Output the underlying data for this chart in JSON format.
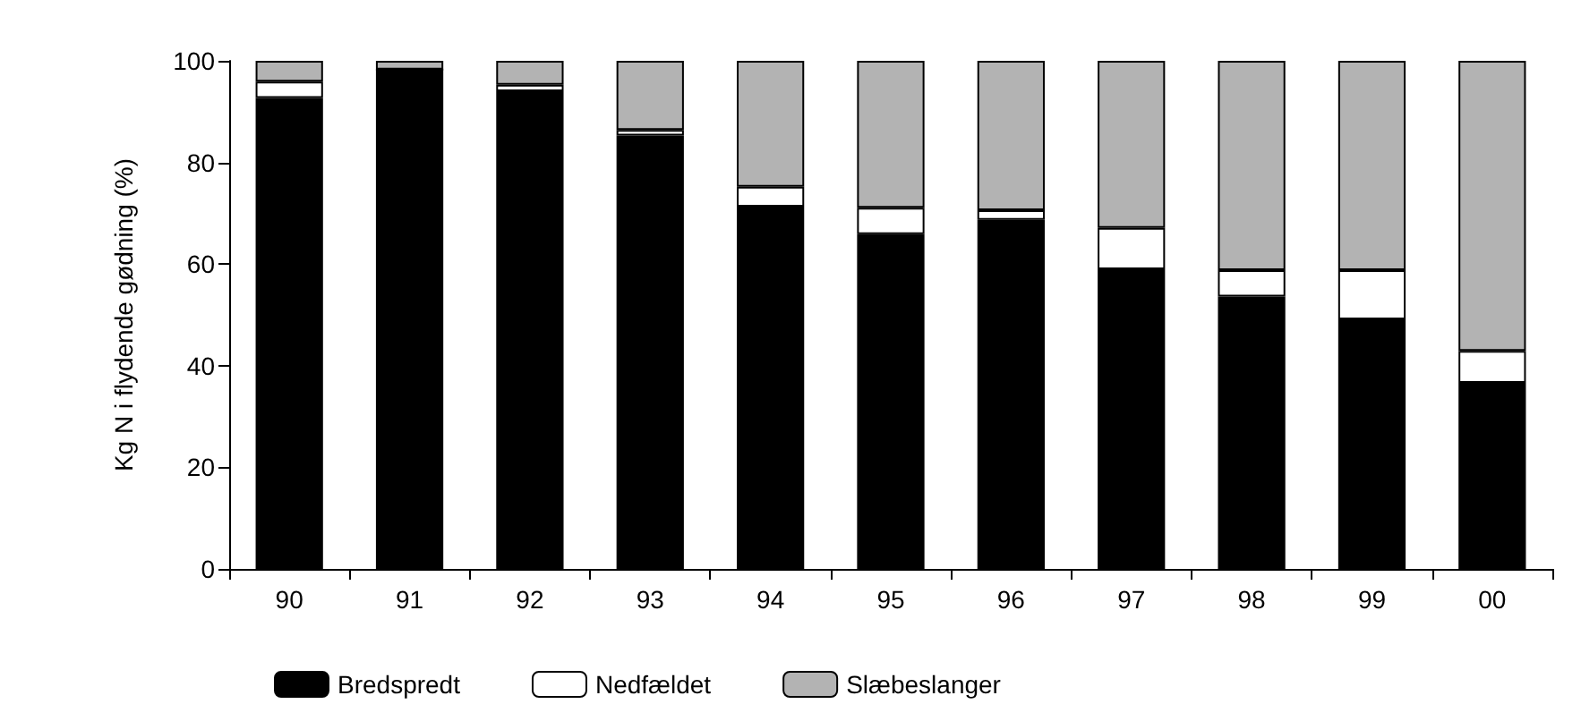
{
  "chart_data": {
    "type": "bar",
    "stacked": true,
    "ylabel": "Kg N i flydende gødning (%)",
    "categories": [
      "90",
      "91",
      "92",
      "93",
      "94",
      "95",
      "96",
      "97",
      "98",
      "99",
      "00"
    ],
    "series": [
      {
        "name": "Bredspredt",
        "color": "#000000",
        "values": [
          92.7,
          98.3,
          94.0,
          85.3,
          71.3,
          65.9,
          68.7,
          59.0,
          53.6,
          49.1,
          36.6
        ]
      },
      {
        "name": "Nedfældet",
        "color": "#ffffff",
        "values": [
          3.2,
          0,
          1.3,
          1.1,
          3.9,
          5.2,
          1.9,
          8.1,
          5.2,
          9.7,
          6.3
        ]
      },
      {
        "name": "Slæbeslanger",
        "color": "#b3b3b3",
        "values": [
          4.1,
          1.7,
          4.7,
          13.6,
          24.8,
          28.9,
          29.4,
          32.9,
          41.2,
          41.2,
          57.1
        ]
      }
    ],
    "ylim": [
      0,
      100
    ],
    "yticks": [
      0,
      20,
      40,
      60,
      80,
      100
    ],
    "grid": false,
    "legend": "bottom"
  }
}
